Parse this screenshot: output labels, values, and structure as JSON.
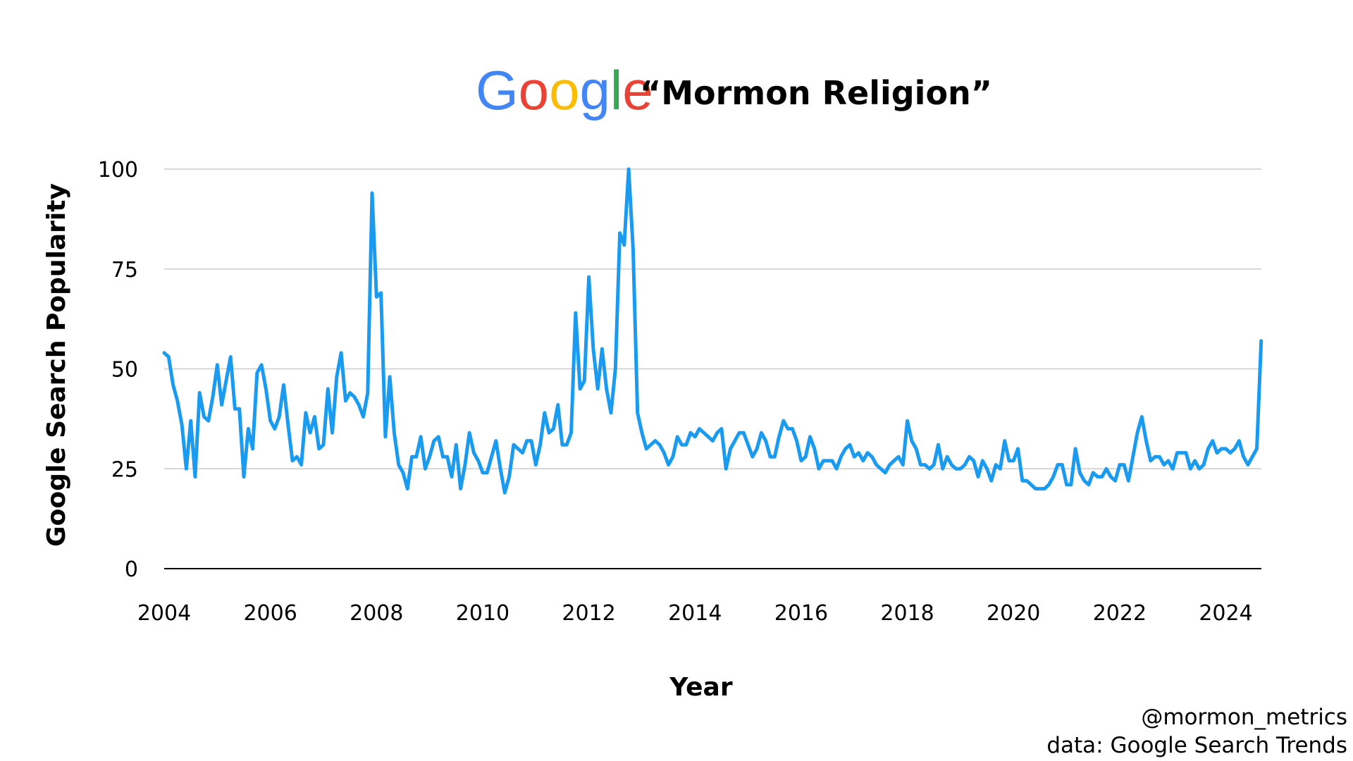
{
  "logo": {
    "letters": [
      {
        "ch": "G",
        "color": "#4285F4"
      },
      {
        "ch": "o",
        "color": "#EA4335"
      },
      {
        "ch": "o",
        "color": "#FBBC05"
      },
      {
        "ch": "g",
        "color": "#4285F4"
      },
      {
        "ch": "l",
        "color": "#34A853"
      },
      {
        "ch": "e",
        "color": "#EA4335"
      }
    ]
  },
  "credits": {
    "handle": "@mormon_metrics",
    "source": "data: Google Search Trends"
  },
  "chart_data": {
    "type": "line",
    "title": "“Mormon Religion”",
    "xlabel": "Year",
    "ylabel": "Google Search Popularity",
    "xlim": [
      2004,
      2024.67
    ],
    "ylim": [
      0,
      100
    ],
    "xticks": [
      "2004",
      "2006",
      "2008",
      "2010",
      "2012",
      "2014",
      "2016",
      "2018",
      "2020",
      "2022",
      "2024"
    ],
    "yticks": [
      "0",
      "25",
      "50",
      "75",
      "100"
    ],
    "grid": true,
    "legend": "none",
    "line_color": "#1A9BF0",
    "series": [
      {
        "x_start": "2004-01",
        "x_step": "month",
        "values": [
          54,
          53,
          46,
          42,
          36,
          25,
          37,
          23,
          44,
          38,
          37,
          43,
          51,
          41,
          47,
          53,
          40,
          40,
          23,
          35,
          30,
          49,
          51,
          45,
          37,
          35,
          38,
          46,
          36,
          27,
          28,
          26,
          39,
          34,
          38,
          30,
          31,
          45,
          34,
          48,
          54,
          42,
          44,
          43,
          41,
          38,
          44,
          94,
          68,
          69,
          33,
          48,
          34,
          26,
          24,
          20,
          28,
          28,
          33,
          25,
          28,
          32,
          33,
          28,
          28,
          23,
          31,
          20,
          26,
          34,
          29,
          27,
          24,
          24,
          28,
          32,
          25,
          19,
          23,
          31,
          30,
          29,
          32,
          32,
          26,
          31,
          39,
          34,
          35,
          41,
          31,
          31,
          34,
          64,
          45,
          47,
          73,
          55,
          45,
          55,
          45,
          39,
          50,
          84,
          81,
          100,
          80,
          39,
          34,
          30,
          31,
          32,
          31,
          29,
          26,
          28,
          33,
          31,
          31,
          34,
          33,
          35,
          34,
          33,
          32,
          34,
          35,
          25,
          30,
          32,
          34,
          34,
          31,
          28,
          30,
          34,
          32,
          28,
          28,
          33,
          37,
          35,
          35,
          32,
          27,
          28,
          33,
          30,
          25,
          27,
          27,
          27,
          25,
          28,
          30,
          31,
          28,
          29,
          27,
          29,
          28,
          26,
          25,
          24,
          26,
          27,
          28,
          26,
          37,
          32,
          30,
          26,
          26,
          25,
          26,
          31,
          25,
          28,
          26,
          25,
          25,
          26,
          28,
          27,
          23,
          27,
          25,
          22,
          26,
          25,
          32,
          27,
          27,
          30,
          22,
          22,
          21,
          20,
          20,
          20,
          21,
          23,
          26,
          26,
          21,
          21,
          30,
          24,
          22,
          21,
          24,
          23,
          23,
          25,
          23,
          22,
          26,
          26,
          22,
          28,
          34,
          38,
          32,
          27,
          28,
          28,
          26,
          27,
          25,
          29,
          29,
          29,
          25,
          27,
          25,
          26,
          30,
          32,
          29,
          30,
          30,
          29,
          30,
          32,
          28,
          26,
          28,
          30,
          57
        ]
      }
    ]
  }
}
